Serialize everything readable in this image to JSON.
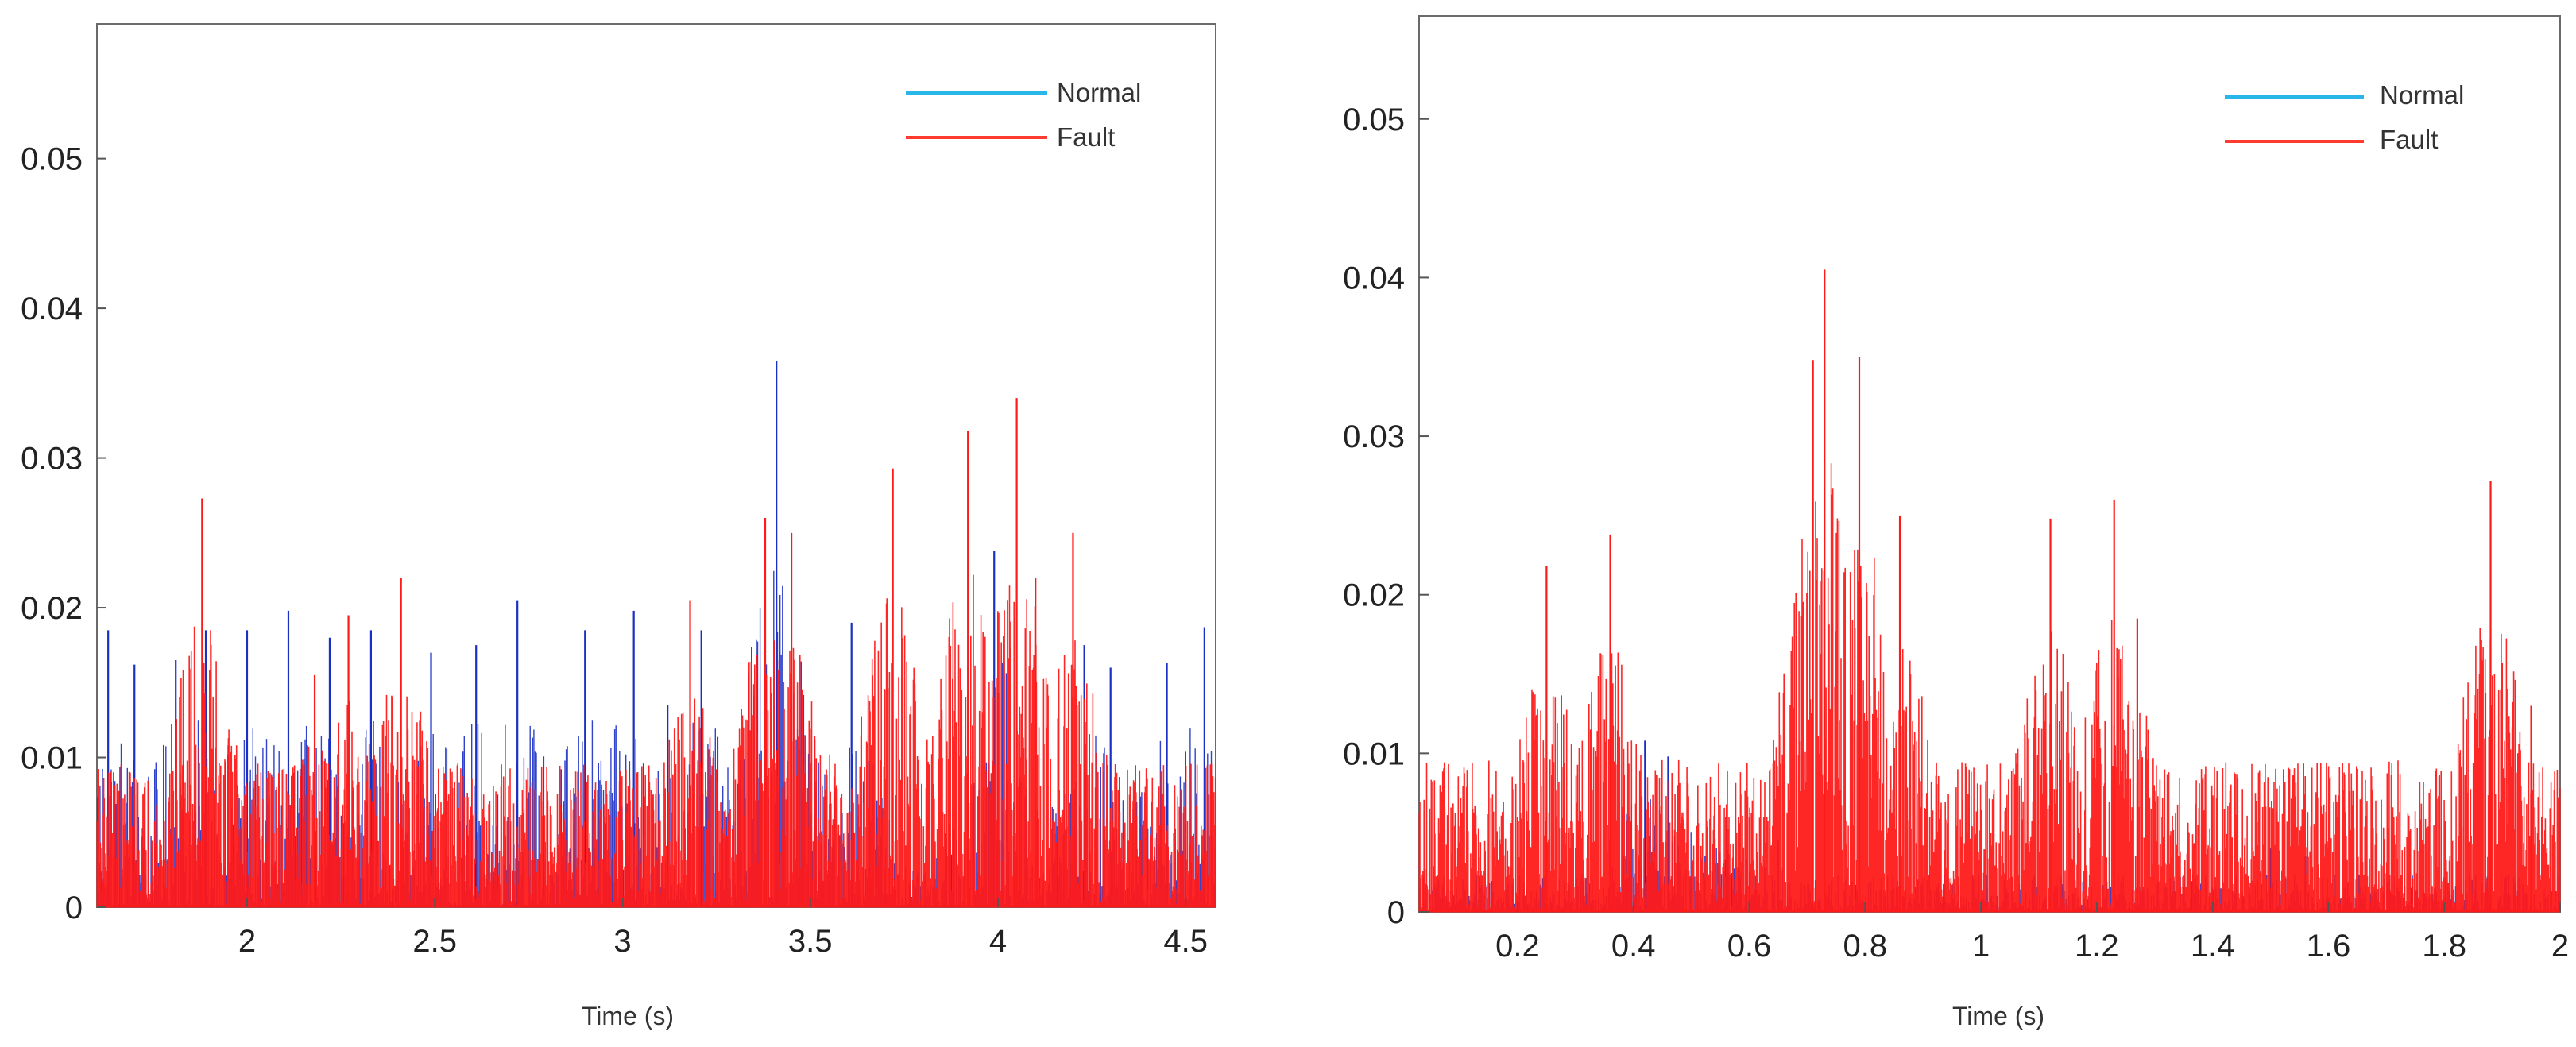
{
  "chart_data": [
    {
      "type": "line",
      "title": "",
      "xlabel": "Time (s)",
      "ylabel": "",
      "xlim": [
        1.6,
        4.58
      ],
      "ylim": [
        0,
        0.059
      ],
      "xticks": [
        2,
        2.5,
        3,
        3.5,
        4,
        4.5
      ],
      "xtick_labels": [
        "2",
        "2.5",
        "3",
        "3.5",
        "4",
        "4.5"
      ],
      "yticks": [
        0,
        0.01,
        0.02,
        0.03,
        0.04,
        0.05
      ],
      "ytick_labels": [
        "0",
        "0.01",
        "0.02",
        "0.03",
        "0.04",
        "0.05"
      ],
      "grid": false,
      "legend_position": "top-right",
      "series": [
        {
          "name": "Normal",
          "color": "#1a2fc4",
          "legend_color": "#29b6e8",
          "peaks": [
            [
              1.63,
              0.0185
            ],
            [
              1.7,
              0.0162
            ],
            [
              1.81,
              0.0165
            ],
            [
              1.89,
              0.0185
            ],
            [
              2.0,
              0.0185
            ],
            [
              2.11,
              0.0198
            ],
            [
              2.22,
              0.018
            ],
            [
              2.33,
              0.0185
            ],
            [
              2.49,
              0.017
            ],
            [
              2.61,
              0.0175
            ],
            [
              2.72,
              0.0205
            ],
            [
              2.9,
              0.0185
            ],
            [
              3.03,
              0.0198
            ],
            [
              3.12,
              0.0135
            ],
            [
              3.21,
              0.0185
            ],
            [
              3.41,
              0.0365
            ],
            [
              3.61,
              0.019
            ],
            [
              3.99,
              0.0238
            ],
            [
              4.23,
              0.0175
            ],
            [
              4.3,
              0.016
            ],
            [
              4.45,
              0.0163
            ],
            [
              4.55,
              0.0187
            ]
          ]
        },
        {
          "name": "Fault",
          "color": "#ff1a1a",
          "legend_color": "#ff3b30",
          "peaks": [
            [
              1.88,
              0.0273
            ],
            [
              2.18,
              0.0155
            ],
            [
              2.27,
              0.0195
            ],
            [
              2.41,
              0.022
            ],
            [
              3.18,
              0.0205
            ],
            [
              3.38,
              0.026
            ],
            [
              3.45,
              0.025
            ],
            [
              3.72,
              0.0293
            ],
            [
              3.92,
              0.0318
            ],
            [
              4.05,
              0.034
            ],
            [
              4.1,
              0.022
            ],
            [
              4.2,
              0.025
            ]
          ]
        }
      ]
    },
    {
      "type": "line",
      "title": "",
      "xlabel": "Time (s)",
      "ylabel": "",
      "xlim": [
        0.03,
        2.0
      ],
      "ylim": [
        0,
        0.0565
      ],
      "xticks": [
        0.2,
        0.4,
        0.6,
        0.8,
        1,
        1.2,
        1.4,
        1.6,
        1.8,
        2
      ],
      "xtick_labels": [
        "0.2",
        "0.4",
        "0.6",
        "0.8",
        "1",
        "1.2",
        "1.4",
        "1.6",
        "1.8",
        "2"
      ],
      "yticks": [
        0,
        0.01,
        0.02,
        0.03,
        0.04,
        0.05
      ],
      "ytick_labels": [
        "0",
        "0.01",
        "0.02",
        "0.03",
        "0.04",
        "0.05"
      ],
      "grid": false,
      "legend_position": "top-right",
      "series": [
        {
          "name": "Normal",
          "color": "#1a2fc4",
          "legend_color": "#29b6e8",
          "peaks": [
            [
              0.42,
              0.0108
            ],
            [
              0.46,
              0.0098
            ],
            [
              0.56,
              0.006
            ],
            [
              0.65,
              0.0045
            ],
            [
              1.5,
              0.004
            ],
            [
              1.56,
              0.0035
            ]
          ]
        },
        {
          "name": "Fault",
          "color": "#ff1a1a",
          "legend_color": "#ff3b30",
          "peaks": [
            [
              0.25,
              0.0218
            ],
            [
              0.36,
              0.0238
            ],
            [
              0.71,
              0.0348
            ],
            [
              0.73,
              0.0405
            ],
            [
              0.79,
              0.035
            ],
            [
              0.86,
              0.025
            ],
            [
              1.12,
              0.0248
            ],
            [
              1.23,
              0.026
            ],
            [
              1.27,
              0.0185
            ],
            [
              1.88,
              0.0272
            ],
            [
              1.95,
              0.013
            ]
          ]
        }
      ]
    }
  ]
}
